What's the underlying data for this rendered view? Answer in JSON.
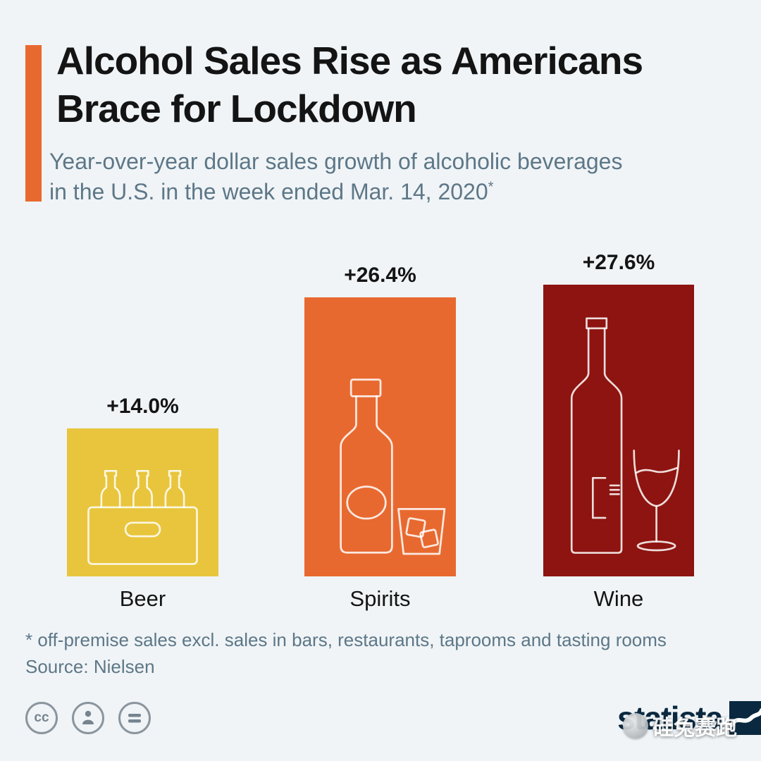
{
  "page": {
    "background": "#f0f4f7"
  },
  "header": {
    "accent_color": "#e8692f",
    "title_line1": "Alcohol Sales Rise as Americans",
    "title_line2": "Brace for Lockdown",
    "subtitle_line1": "Year-over-year dollar sales growth of alcoholic beverages",
    "subtitle_line2": "in the U.S. in the week ended Mar. 14, 2020",
    "footnote_marker": "*"
  },
  "chart_data": {
    "type": "bar",
    "title": "Alcohol Sales Rise as Americans Brace for Lockdown",
    "categories": [
      "Beer",
      "Spirits",
      "Wine"
    ],
    "values": [
      14.0,
      26.4,
      27.6
    ],
    "value_labels": [
      "+14.0%",
      "+26.4%",
      "+27.6%"
    ],
    "unit": "percent year-over-year dollar sales growth",
    "bar_colors": [
      "#e8c53c",
      "#e8692f",
      "#8d1410"
    ],
    "icon_names": [
      "beer-crate-icon",
      "spirits-bottle-glass-icon",
      "wine-bottle-glass-icon"
    ],
    "xlabel": "",
    "ylabel": "",
    "ylim": [
      0,
      30
    ],
    "grid": false,
    "legend": "none"
  },
  "footer": {
    "footnote": "* off-premise sales excl. sales in bars, restaurants, taprooms and tasting rooms",
    "source": "Source: Nielsen",
    "license": {
      "cc_label": "cc"
    },
    "brand": "statista",
    "watermark": "硅兔赛跑"
  }
}
